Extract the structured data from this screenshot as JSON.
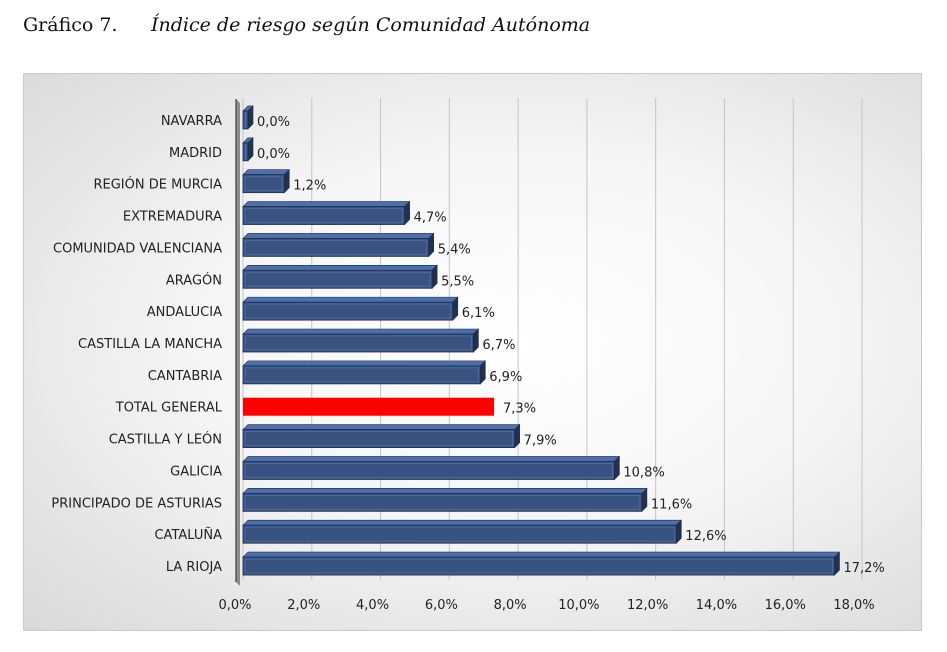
{
  "heading": {
    "number": "Gráfico 7.",
    "title": "Índice de riesgo según Comunidad Autónoma"
  },
  "colors": {
    "bar": "#3a5280",
    "bar_highlight": "#ff0000"
  },
  "chart_data": {
    "type": "bar",
    "orientation": "horizontal",
    "categories": [
      "NAVARRA",
      "MADRID",
      "REGIÓN DE MURCIA",
      "EXTREMADURA",
      "COMUNIDAD VALENCIANA",
      "ARAGÓN",
      "ANDALUCIA",
      "CASTILLA LA MANCHA",
      "CANTABRIA",
      "TOTAL GENERAL",
      "CASTILLA Y LEÓN",
      "GALICIA",
      "PRINCIPADO DE ASTURIAS",
      "CATALUÑA",
      "LA RIOJA"
    ],
    "values": [
      0.0,
      0.0,
      1.2,
      4.7,
      5.4,
      5.5,
      6.1,
      6.7,
      6.9,
      7.3,
      7.9,
      10.8,
      11.6,
      12.6,
      17.2
    ],
    "value_labels": [
      "0,0%",
      "0,0%",
      "1,2%",
      "4,7%",
      "5,4%",
      "5,5%",
      "6,1%",
      "6,7%",
      "6,9%",
      "7,3%",
      "7,9%",
      "10,8%",
      "11,6%",
      "12,6%",
      "17,2%"
    ],
    "highlight": [
      "TOTAL GENERAL"
    ],
    "xlim": [
      0,
      18
    ],
    "xticks": [
      0,
      2,
      4,
      6,
      8,
      10,
      12,
      14,
      16,
      18
    ],
    "xtick_labels": [
      "0,0%",
      "2,0%",
      "4,0%",
      "6,0%",
      "8,0%",
      "10,0%",
      "12,0%",
      "14,0%",
      "16,0%",
      "18,0%"
    ],
    "grid": true,
    "legend": "none"
  }
}
